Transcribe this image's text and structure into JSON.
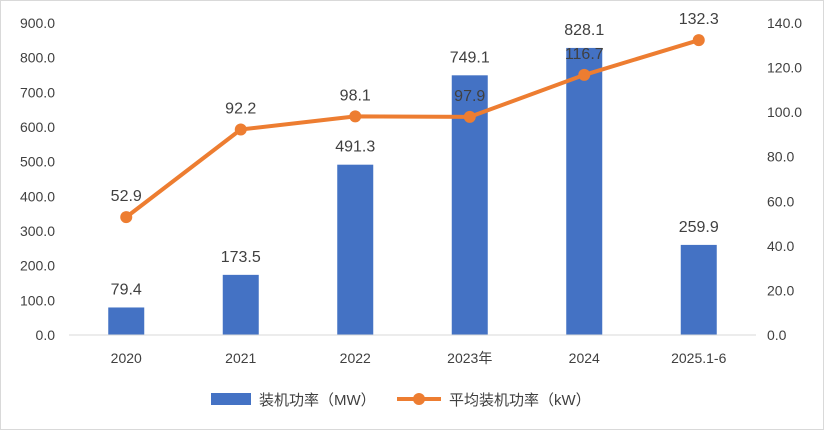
{
  "colors": {
    "bar": "#4472C4",
    "line": "#ED7D31",
    "axis": "#D9D9D9",
    "text": "#404040"
  },
  "chart_data": {
    "type": "bar",
    "title": "",
    "categories": [
      "2020",
      "2021",
      "2022",
      "2023年",
      "2024",
      "2025.1-6"
    ],
    "series": [
      {
        "name": "装机功率（MW）",
        "type": "bar",
        "axis": "left",
        "values": [
          79.4,
          173.5,
          491.3,
          749.1,
          828.1,
          259.9
        ],
        "labels": [
          "79.4",
          "173.5",
          "491.3",
          "749.1",
          "828.1",
          "259.9"
        ]
      },
      {
        "name": "平均装机功率（kW）",
        "type": "line",
        "marker": "circle",
        "axis": "right",
        "values": [
          52.9,
          92.2,
          98.1,
          97.9,
          116.7,
          132.3
        ],
        "labels": [
          "52.9",
          "92.2",
          "98.1",
          "97.9",
          "116.7",
          "132.3"
        ]
      }
    ],
    "y_left": {
      "min": 0,
      "max": 900,
      "step": 100,
      "tick_labels": [
        "0.0",
        "100.0",
        "200.0",
        "300.0",
        "400.0",
        "500.0",
        "600.0",
        "700.0",
        "800.0",
        "900.0"
      ]
    },
    "y_right": {
      "min": 0,
      "max": 140,
      "step": 20,
      "tick_labels": [
        "0.0",
        "20.0",
        "40.0",
        "60.0",
        "80.0",
        "100.0",
        "120.0",
        "140.0"
      ]
    },
    "xlabel": "",
    "grid": false,
    "legend_position": "bottom"
  }
}
